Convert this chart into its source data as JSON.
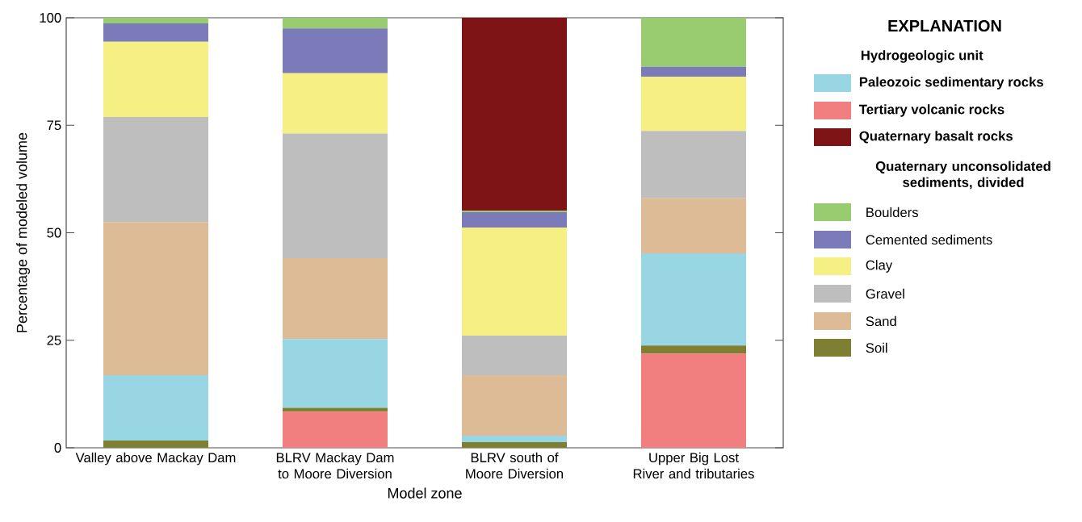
{
  "chart_data": {
    "type": "bar",
    "stacked": true,
    "xlabel": "Model zone",
    "ylabel": "Percentage of modeled volume",
    "categories": [
      "Valley above Mackay Dam",
      "BLRV Mackay Dam to Moore Diversion",
      "BLRV south of Moore Diversion",
      "Upper Big Lost River and tributaries"
    ],
    "series": [
      {
        "name": "Tertiary volcanic rocks",
        "color": "#f17f80",
        "values": [
          0,
          8.4,
          0,
          21.9
        ]
      },
      {
        "name": "Soil",
        "color": "#7f7f33",
        "values": [
          1.7,
          0.9,
          1.3,
          1.9
        ]
      },
      {
        "name": "Paleozoic sedimentary rocks",
        "color": "#99d6e4",
        "values": [
          15.2,
          16,
          1.5,
          21.4
        ]
      },
      {
        "name": "Sand",
        "color": "#dcbb96",
        "values": [
          35.6,
          18.8,
          14.1,
          12.8
        ]
      },
      {
        "name": "Gravel",
        "color": "#bebebe",
        "values": [
          24.4,
          29,
          9.2,
          15.7
        ]
      },
      {
        "name": "Clay",
        "color": "#f6ef84",
        "values": [
          17.5,
          14,
          25.1,
          12.6
        ]
      },
      {
        "name": "Cemented sediments",
        "color": "#7b7bba",
        "values": [
          4.3,
          10.4,
          3.6,
          2.3
        ]
      },
      {
        "name": "Boulders",
        "color": "#99cc70",
        "values": [
          1.3,
          2.5,
          0.3,
          11.4
        ]
      },
      {
        "name": "Quaternary basalt rocks",
        "color": "#7f1416",
        "values": [
          0,
          0,
          44.9,
          0
        ]
      }
    ],
    "ylim": [
      0,
      100
    ],
    "yticks": [
      0,
      25,
      50,
      75,
      100
    ],
    "legend": "right",
    "legend_title": "EXPLANATION",
    "annotations": [
      "Hydrogeologic unit",
      "Quaternary unconsolidated sediments, divided"
    ]
  }
}
